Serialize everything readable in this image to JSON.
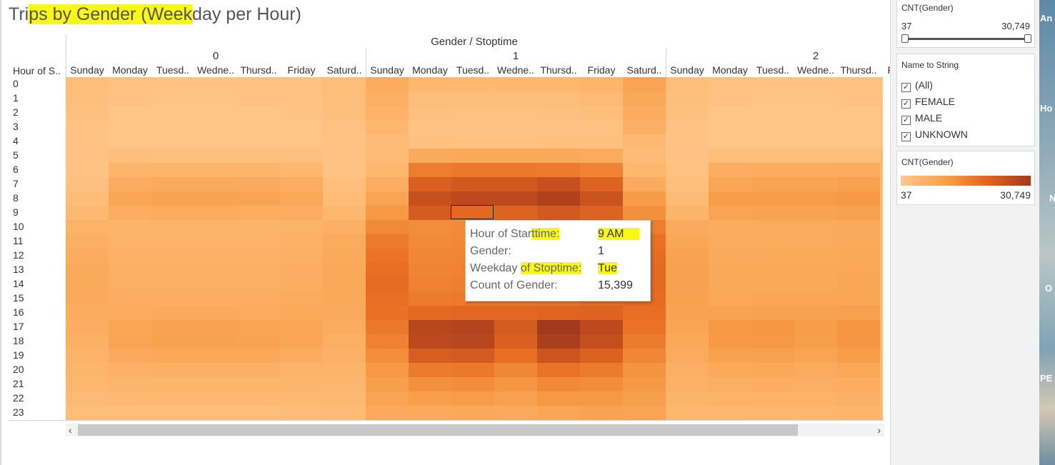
{
  "title": {
    "part1": "Tri",
    "hl1": "ps by Gender (Week",
    "part2": "day per Hour)"
  },
  "columns_title": "Gender / Stoptime",
  "row_header_title": "Hour of S..",
  "genders": [
    "0",
    "1",
    "2"
  ],
  "days": [
    "Sunday",
    "Monday",
    "Tuesd..",
    "Wedne..",
    "Thursd..",
    "Friday",
    "Saturd.."
  ],
  "hours": [
    "0",
    "1",
    "2",
    "3",
    "4",
    "5",
    "6",
    "7",
    "8",
    "9",
    "10",
    "11",
    "12",
    "13",
    "14",
    "15",
    "16",
    "17",
    "18",
    "19",
    "20",
    "21",
    "22",
    "23"
  ],
  "sidebar": {
    "range_filter": {
      "title": "CNT(Gender)",
      "min": "37",
      "max": "30,749"
    },
    "name_filter": {
      "title": "Name to String",
      "items": [
        "(All)",
        "FEMALE",
        "MALE",
        "UNKNOWN"
      ]
    },
    "color_legend": {
      "title": "CNT(Gender)",
      "min": "37",
      "max": "30,749"
    }
  },
  "tooltip": {
    "rows": [
      {
        "label": "Hour of Starttime:",
        "value": "9 AM"
      },
      {
        "label": "Gender:",
        "value": "1"
      },
      {
        "label": "Weekday of Stoptime:",
        "value": "Tue"
      },
      {
        "label": "Count of Gender:",
        "value": "15,399"
      }
    ]
  },
  "strip_labels": [
    "An",
    "Ho",
    "N",
    "O",
    "PE"
  ],
  "colors": {
    "low": "#ffc58a",
    "mid": "#f9a24b",
    "high": "#e3641c",
    "max": "#a23a1d",
    "highlight": "#f7f71a"
  },
  "chart_data": {
    "type": "heatmap",
    "title": "Trips by Gender (Weekday per Hour)",
    "xlabel": "Gender / Stoptime",
    "ylabel": "Hour of Starttime",
    "x_groups": [
      "0",
      "1",
      "2"
    ],
    "x_categories": [
      "Sunday",
      "Monday",
      "Tuesday",
      "Wednesday",
      "Thursday",
      "Friday",
      "Saturday"
    ],
    "y_categories": [
      "0",
      "1",
      "2",
      "3",
      "4",
      "5",
      "6",
      "7",
      "8",
      "9",
      "10",
      "11",
      "12",
      "13",
      "14",
      "15",
      "16",
      "17",
      "18",
      "19",
      "20",
      "21",
      "22",
      "23"
    ],
    "value_range": [
      37,
      30749
    ],
    "series": [
      {
        "name": "0",
        "values": [
          [
            900,
            500,
            450,
            450,
            480,
            500,
            900
          ],
          [
            700,
            300,
            280,
            280,
            300,
            350,
            800
          ],
          [
            600,
            200,
            180,
            180,
            200,
            250,
            700
          ],
          [
            400,
            150,
            120,
            120,
            150,
            180,
            500
          ],
          [
            300,
            200,
            180,
            180,
            200,
            220,
            350
          ],
          [
            300,
            700,
            650,
            650,
            650,
            600,
            300
          ],
          [
            400,
            1800,
            1900,
            1900,
            1800,
            1600,
            400
          ],
          [
            600,
            3200,
            3500,
            3500,
            3300,
            2900,
            700
          ],
          [
            900,
            4200,
            4800,
            4800,
            4500,
            3900,
            1000
          ],
          [
            1400,
            3000,
            3300,
            3300,
            3100,
            2900,
            1500
          ],
          [
            2200,
            2000,
            2100,
            2100,
            2000,
            2200,
            2600
          ],
          [
            2800,
            2100,
            2100,
            2100,
            2100,
            2400,
            3300
          ],
          [
            3200,
            2400,
            2400,
            2400,
            2400,
            2800,
            3600
          ],
          [
            3500,
            2600,
            2600,
            2600,
            2600,
            3000,
            3800
          ],
          [
            3600,
            2700,
            2700,
            2700,
            2700,
            3100,
            3800
          ],
          [
            3500,
            2900,
            2900,
            2900,
            2900,
            3300,
            3700
          ],
          [
            3300,
            3400,
            3500,
            3500,
            3400,
            3600,
            3500
          ],
          [
            3000,
            4300,
            4700,
            4700,
            4600,
            4200,
            3200
          ],
          [
            2600,
            4500,
            5000,
            5000,
            4800,
            4100,
            2800
          ],
          [
            2200,
            3500,
            3800,
            3800,
            3700,
            3200,
            2400
          ],
          [
            1800,
            2400,
            2600,
            2600,
            2600,
            2300,
            2000
          ],
          [
            1500,
            1800,
            1900,
            1900,
            1900,
            1800,
            1700
          ],
          [
            1200,
            1300,
            1400,
            1400,
            1400,
            1400,
            1400
          ],
          [
            900,
            800,
            900,
            900,
            900,
            1000,
            1100
          ]
        ]
      },
      {
        "name": "1",
        "values": [
          [
            3200,
            1500,
            1400,
            1500,
            1600,
            1900,
            4500
          ],
          [
            2600,
            900,
            800,
            800,
            900,
            1200,
            3800
          ],
          [
            2200,
            600,
            500,
            500,
            600,
            800,
            3200
          ],
          [
            1700,
            400,
            350,
            350,
            400,
            500,
            2500
          ],
          [
            1200,
            600,
            550,
            550,
            600,
            650,
            1400
          ],
          [
            1100,
            3500,
            3800,
            3800,
            3700,
            3400,
            1100
          ],
          [
            1600,
            11000,
            12000,
            12000,
            11500,
            10000,
            1700
          ],
          [
            2900,
            18000,
            20000,
            20000,
            23000,
            17000,
            3400
          ],
          [
            4500,
            23000,
            25000,
            25000,
            28000,
            22000,
            6000
          ],
          [
            6500,
            19000,
            15399,
            17000,
            20000,
            17000,
            8000
          ],
          [
            9000,
            8500,
            8800,
            8800,
            9000,
            9500,
            11000
          ],
          [
            11500,
            8800,
            9000,
            9000,
            9200,
            10500,
            13500
          ],
          [
            13000,
            9500,
            9800,
            9800,
            10000,
            11500,
            14500
          ],
          [
            14000,
            10000,
            10200,
            10200,
            10500,
            12000,
            15000
          ],
          [
            14500,
            10500,
            10800,
            10800,
            11000,
            12500,
            15000
          ],
          [
            14000,
            11500,
            11800,
            11800,
            12000,
            13500,
            14500
          ],
          [
            13500,
            15000,
            15500,
            15500,
            16500,
            17000,
            14000
          ],
          [
            12000,
            26000,
            27000,
            19000,
            30749,
            25000,
            13000
          ],
          [
            10500,
            25500,
            26500,
            18000,
            29000,
            23500,
            11500
          ],
          [
            8500,
            18500,
            19500,
            14000,
            21500,
            17500,
            9500
          ],
          [
            6500,
            11500,
            12000,
            9500,
            13000,
            11500,
            7500
          ],
          [
            5500,
            8000,
            8500,
            7000,
            9000,
            8500,
            6500
          ],
          [
            4500,
            5500,
            6000,
            5200,
            6500,
            6500,
            5500
          ],
          [
            3500,
            3500,
            3800,
            3500,
            4200,
            4800,
            4500
          ]
        ]
      },
      {
        "name": "2",
        "values": [
          [
            900,
            500,
            450,
            450,
            480,
            500,
            0
          ],
          [
            700,
            300,
            280,
            280,
            300,
            350,
            0
          ],
          [
            600,
            200,
            180,
            180,
            200,
            250,
            0
          ],
          [
            400,
            150,
            120,
            120,
            150,
            180,
            0
          ],
          [
            300,
            200,
            180,
            180,
            200,
            220,
            0
          ],
          [
            300,
            900,
            900,
            900,
            900,
            0,
            0
          ],
          [
            500,
            3000,
            3200,
            3200,
            3400,
            0,
            0
          ],
          [
            700,
            4200,
            4500,
            4500,
            5000,
            0,
            0
          ],
          [
            1200,
            5600,
            6000,
            6000,
            6500,
            0,
            0
          ],
          [
            2000,
            4600,
            4800,
            4800,
            5200,
            0,
            0
          ],
          [
            3600,
            3200,
            3300,
            3300,
            3500,
            0,
            0
          ],
          [
            4300,
            3300,
            3400,
            3400,
            3600,
            0,
            0
          ],
          [
            4800,
            3500,
            3600,
            3600,
            3800,
            0,
            0
          ],
          [
            5000,
            3700,
            3800,
            3800,
            4000,
            0,
            0
          ],
          [
            5100,
            3800,
            3900,
            3900,
            4100,
            0,
            0
          ],
          [
            4900,
            4000,
            4100,
            4100,
            4300,
            0,
            0
          ],
          [
            4700,
            4800,
            4900,
            4900,
            5300,
            0,
            0
          ],
          [
            4400,
            6500,
            6700,
            5600,
            7200,
            0,
            0
          ],
          [
            3900,
            6300,
            6500,
            5500,
            7000,
            0,
            0
          ],
          [
            3400,
            5000,
            5200,
            4600,
            5600,
            0,
            0
          ],
          [
            2800,
            3600,
            3700,
            3400,
            4000,
            0,
            0
          ],
          [
            2400,
            2800,
            2900,
            2700,
            3100,
            0,
            0
          ],
          [
            2000,
            2200,
            2300,
            2200,
            2500,
            0,
            0
          ],
          [
            1600,
            1600,
            1700,
            1700,
            1900,
            0,
            0
          ]
        ]
      }
    ]
  }
}
